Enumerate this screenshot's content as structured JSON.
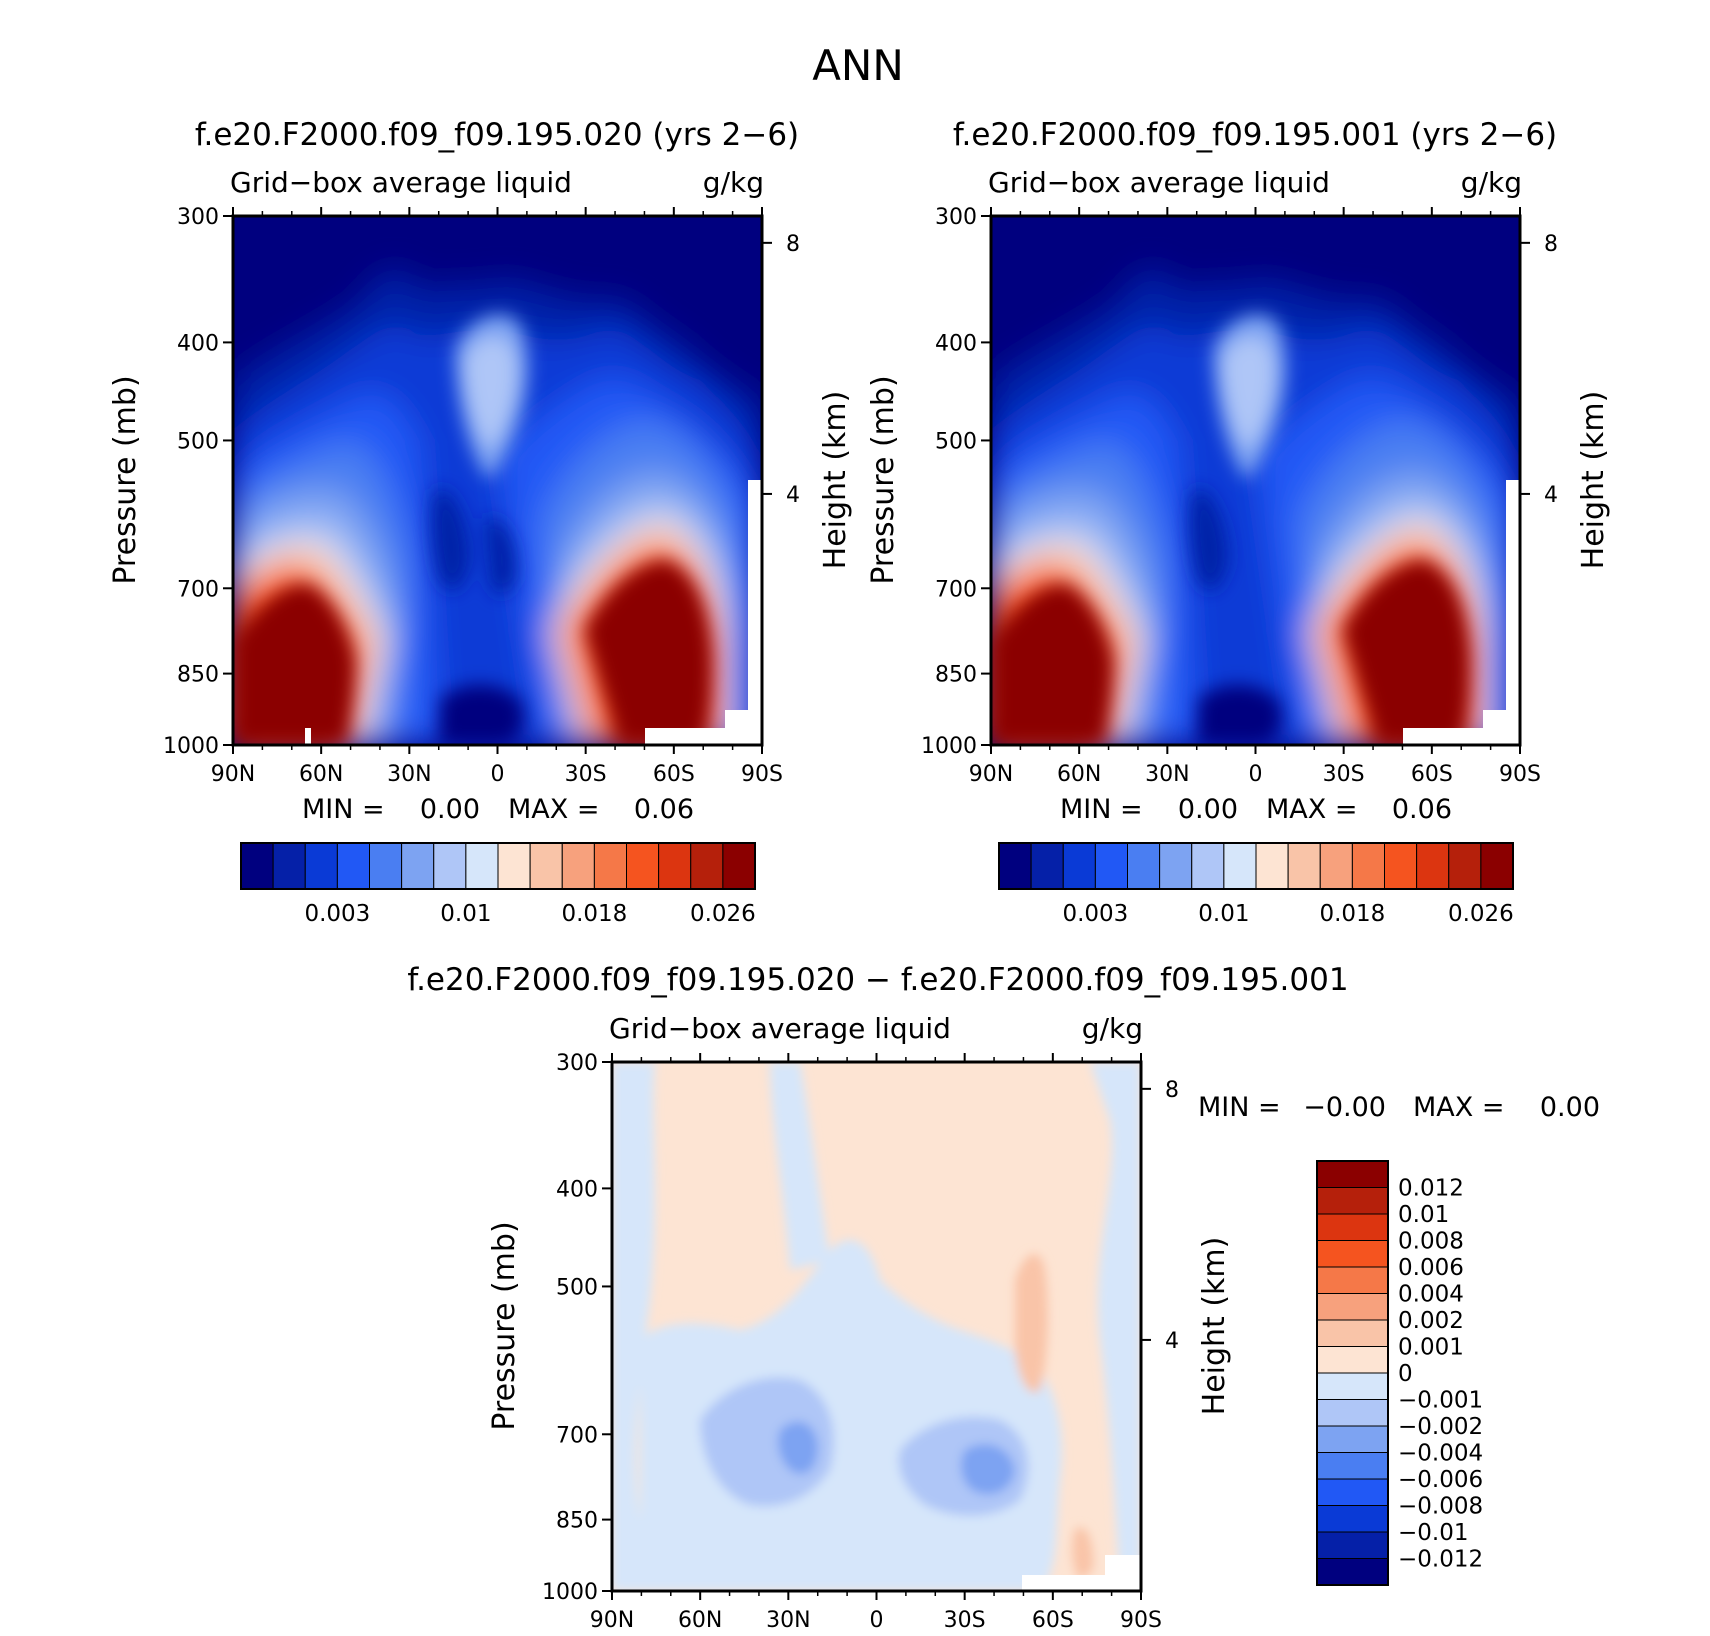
{
  "figure": {
    "title": "ANN"
  },
  "chart_data": [
    {
      "type": "heatmap",
      "id": "left",
      "title": "f.e20.F2000.f09_f09.195.020 (yrs 2−6)",
      "subtitle_left": "Grid−box average liquid",
      "subtitle_right": "g/kg",
      "ylabel": "Pressure (mb)",
      "ylabel_right": "Height (km)",
      "x_ticks": [
        "90N",
        "60N",
        "30N",
        "0",
        "30S",
        "60S",
        "90S"
      ],
      "y_ticks": [
        "300",
        "400",
        "500",
        "700",
        "850",
        "1000"
      ],
      "y_ticks_right": [
        "8",
        "4"
      ],
      "log_pressure_axis": true,
      "min_label": "MIN =",
      "min_value": "0.00",
      "max_label": "MAX =",
      "max_value": "0.06",
      "colorbar_labels": [
        "0.003",
        "0.01",
        "0.018",
        "0.026"
      ],
      "colorbar_colors": [
        "#00007f",
        "#0520a8",
        "#0a3ad6",
        "#2158f5",
        "#4a7ef2",
        "#7da3f2",
        "#afc6f7",
        "#d6e6fa",
        "#fde4d3",
        "#f9c4a8",
        "#f7a17d",
        "#f57848",
        "#f5541f",
        "#dc3510",
        "#b5200b",
        "#8b0000"
      ]
    },
    {
      "type": "heatmap",
      "id": "right",
      "title": "f.e20.F2000.f09_f09.195.001 (yrs 2−6)",
      "subtitle_left": "Grid−box average liquid",
      "subtitle_right": "g/kg",
      "ylabel": "Pressure (mb)",
      "ylabel_right": "Height (km)",
      "x_ticks": [
        "90N",
        "60N",
        "30N",
        "0",
        "30S",
        "60S",
        "90S"
      ],
      "y_ticks": [
        "300",
        "400",
        "500",
        "700",
        "850",
        "1000"
      ],
      "y_ticks_right": [
        "8",
        "4"
      ],
      "log_pressure_axis": true,
      "min_label": "MIN =",
      "min_value": "0.00",
      "max_label": "MAX =",
      "max_value": "0.06",
      "colorbar_labels": [
        "0.003",
        "0.01",
        "0.018",
        "0.026"
      ],
      "colorbar_colors": [
        "#00007f",
        "#0520a8",
        "#0a3ad6",
        "#2158f5",
        "#4a7ef2",
        "#7da3f2",
        "#afc6f7",
        "#d6e6fa",
        "#fde4d3",
        "#f9c4a8",
        "#f7a17d",
        "#f57848",
        "#f5541f",
        "#dc3510",
        "#b5200b",
        "#8b0000"
      ]
    },
    {
      "type": "heatmap",
      "id": "diff",
      "title": "f.e20.F2000.f09_f09.195.020 − f.e20.F2000.f09_f09.195.001",
      "subtitle_left": "Grid−box average liquid",
      "subtitle_right": "g/kg",
      "ylabel": "Pressure (mb)",
      "ylabel_right": "Height (km)",
      "x_ticks": [
        "90N",
        "60N",
        "30N",
        "0",
        "30S",
        "60S",
        "90S"
      ],
      "y_ticks": [
        "300",
        "400",
        "500",
        "700",
        "850",
        "1000"
      ],
      "y_ticks_right": [
        "8",
        "4"
      ],
      "log_pressure_axis": true,
      "min_label": "MIN =",
      "min_value": "−0.00",
      "max_label": "MAX =",
      "max_value": "0.00",
      "colorbar_labels": [
        "0.012",
        "0.01",
        "0.008",
        "0.006",
        "0.004",
        "0.002",
        "0.001",
        "0",
        "−0.001",
        "−0.002",
        "−0.004",
        "−0.006",
        "−0.008",
        "−0.01",
        "−0.012"
      ],
      "colorbar_colors": [
        "#8b0000",
        "#b5200b",
        "#dc3510",
        "#f5541f",
        "#f57848",
        "#f7a17d",
        "#f9c4a8",
        "#fde4d3",
        "#d6e6fa",
        "#afc6f7",
        "#7da3f2",
        "#4a7ef2",
        "#2158f5",
        "#0a3ad6",
        "#0520a8",
        "#00007f"
      ]
    }
  ]
}
